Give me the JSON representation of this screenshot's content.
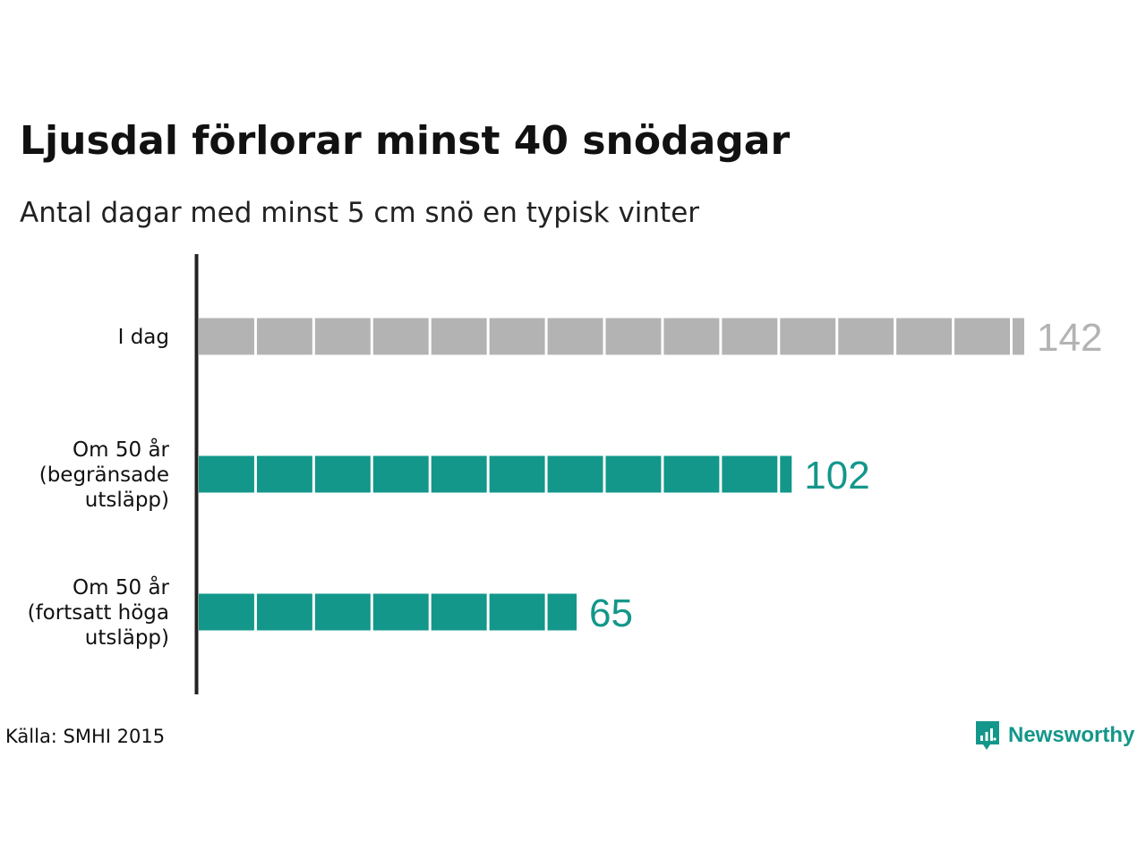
{
  "title": "Ljusdal förlorar minst 40 snödagar",
  "subtitle": "Antal dagar med minst 5 cm snö en typisk vinter",
  "source": "Källa: SMHI 2015",
  "brand": {
    "name": "Newsworthy",
    "icon": "newsworthy-logo-icon",
    "color": "#13978a"
  },
  "colors": {
    "today": "#b3b3b3",
    "future": "#13978a",
    "axis": "#222222"
  },
  "chart_data": {
    "type": "bar",
    "orientation": "horizontal",
    "categories": [
      [
        "I dag"
      ],
      [
        "Om 50 år",
        "(begränsade",
        "utsläpp)"
      ],
      [
        "Om 50 år",
        "(fortsatt höga",
        "utsläpp)"
      ]
    ],
    "values": [
      142,
      102,
      65
    ],
    "labels": [
      "142",
      "102",
      "65"
    ],
    "bar_colors": [
      "#b3b3b3",
      "#13978a",
      "#13978a"
    ],
    "segment_size": 10,
    "xlim": [
      0,
      142
    ],
    "grid": false,
    "legend": "none"
  }
}
